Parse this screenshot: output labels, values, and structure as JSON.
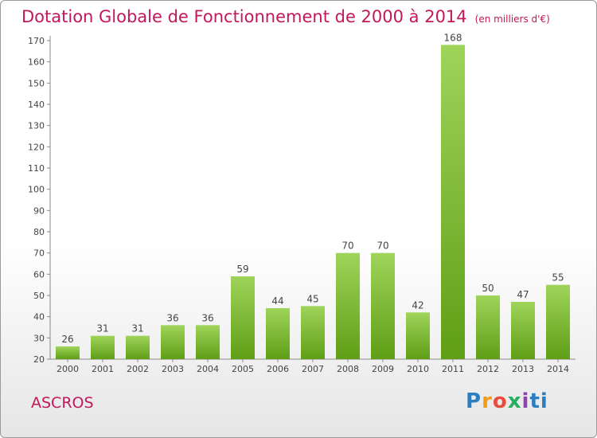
{
  "title": "Dotation Globale de Fonctionnement de 2000 à 2014",
  "subtitle": "(en milliers d'€)",
  "commune": "ASCROS",
  "logo": [
    "P",
    "r",
    "o",
    "x",
    "i",
    "ti"
  ],
  "chart_data": {
    "type": "bar",
    "title": "Dotation Globale de Fonctionnement de 2000 à 2014",
    "subtitle": "(en milliers d'€)",
    "categories": [
      "2000",
      "2001",
      "2002",
      "2003",
      "2004",
      "2005",
      "2006",
      "2007",
      "2008",
      "2009",
      "2010",
      "2011",
      "2012",
      "2013",
      "2014"
    ],
    "values": [
      26,
      31,
      31,
      36,
      36,
      59,
      44,
      45,
      70,
      70,
      42,
      168,
      50,
      47,
      55
    ],
    "ylim": [
      20,
      170
    ],
    "yticks": [
      20,
      30,
      40,
      50,
      60,
      70,
      80,
      90,
      100,
      110,
      120,
      130,
      140,
      150,
      160,
      170
    ],
    "grid": false,
    "bar_color_light": "#9fd45a",
    "bar_color_dark": "#5f9e16"
  }
}
